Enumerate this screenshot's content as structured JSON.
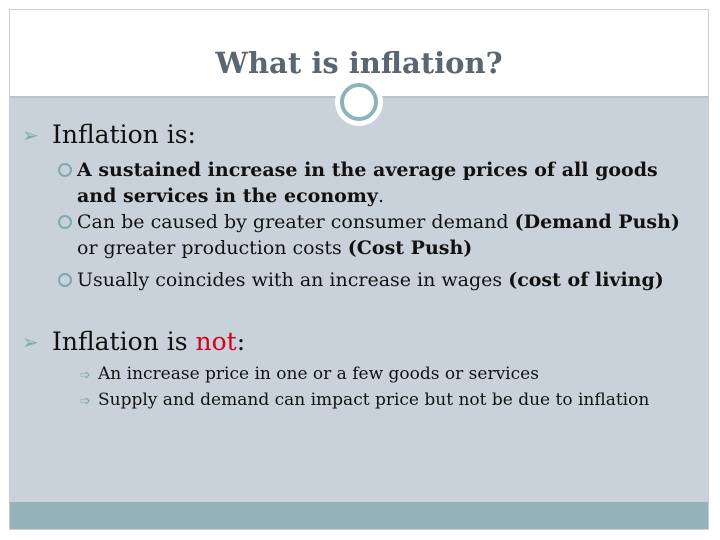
{
  "slide": {
    "title": "What is inflation?",
    "section1": {
      "heading": "Inflation is:",
      "bullets": [
        {
          "bold": "A sustained increase in the average prices of all goods and services in the economy",
          "rest": "."
        },
        {
          "text": "Can be caused by greater consumer demand ",
          "bold1": "(Demand Push)",
          "text2": " or greater production costs ",
          "bold2": "(Cost Push)"
        },
        {
          "text": "Usually coincides with an increase in wages ",
          "bold": "(cost of living)"
        }
      ]
    },
    "section2": {
      "heading_pre": "Inflation is ",
      "heading_red": "not",
      "heading_post": ":",
      "bullets": [
        "An increase price in one or a few goods or services",
        "Supply and demand can impact price but not be due to inflation"
      ]
    }
  },
  "icons": {
    "title_ornament": "circle-ring-icon",
    "level1_bullet": "pointer-arrow-icon",
    "level2_bullet": "ring-bullet-icon",
    "level3_bullet": "arrow-bullet-icon"
  },
  "colors": {
    "accent": "#7fa8b0",
    "title": "#5a6672",
    "content_bg": "#c9d2da",
    "footer": "#95b3b8",
    "emphasis": "#d0021b"
  }
}
